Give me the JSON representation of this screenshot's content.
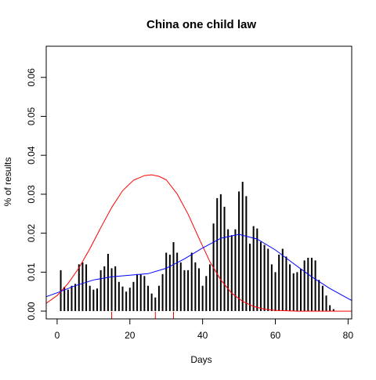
{
  "chart_data": {
    "type": "bar",
    "title": "China one child law",
    "xlabel": "Days",
    "ylabel": "% of results",
    "xlim": [
      -3,
      81
    ],
    "ylim": [
      -0.002,
      0.068
    ],
    "x_ticks": [
      0,
      20,
      40,
      60,
      80
    ],
    "y_ticks": [
      0.0,
      0.01,
      0.02,
      0.03,
      0.04,
      0.05,
      0.06
    ],
    "y_tick_labels": [
      "0.00",
      "0.01",
      "0.02",
      "0.03",
      "0.04",
      "0.05",
      "0.06"
    ],
    "grid": false,
    "bars": {
      "x": [
        1,
        2,
        3,
        4,
        5,
        6,
        7,
        8,
        9,
        10,
        11,
        12,
        13,
        14,
        15,
        16,
        17,
        18,
        19,
        20,
        21,
        22,
        23,
        24,
        25,
        26,
        27,
        28,
        29,
        30,
        31,
        32,
        33,
        34,
        35,
        36,
        37,
        38,
        39,
        40,
        41,
        42,
        43,
        44,
        45,
        46,
        47,
        48,
        49,
        50,
        51,
        52,
        53,
        54,
        55,
        56,
        57,
        58,
        59,
        60,
        61,
        62,
        63,
        64,
        65,
        66,
        67,
        68,
        69,
        70,
        71,
        72,
        73,
        74,
        75,
        76
      ],
      "values": [
        0.0105,
        0.0062,
        0.0055,
        0.0065,
        0.007,
        0.012,
        0.0125,
        0.012,
        0.0065,
        0.0055,
        0.0058,
        0.0105,
        0.0115,
        0.0147,
        0.011,
        0.0115,
        0.0075,
        0.0063,
        0.005,
        0.006,
        0.0075,
        0.0095,
        0.0095,
        0.009,
        0.0065,
        0.0045,
        0.0035,
        0.0065,
        0.0095,
        0.015,
        0.0145,
        0.0177,
        0.015,
        0.0125,
        0.0105,
        0.0105,
        0.015,
        0.0125,
        0.011,
        0.0065,
        0.009,
        0.012,
        0.0225,
        0.029,
        0.03,
        0.0268,
        0.021,
        0.0195,
        0.021,
        0.0307,
        0.0332,
        0.0295,
        0.0173,
        0.0218,
        0.0212,
        0.0178,
        0.017,
        0.016,
        0.012,
        0.01,
        0.0145,
        0.016,
        0.014,
        0.012,
        0.0097,
        0.01,
        0.0108,
        0.013,
        0.0137,
        0.0137,
        0.013,
        0.008,
        0.0065,
        0.004,
        0.0015,
        0.0005
      ]
    },
    "series": [
      {
        "color": "#ff0000",
        "x": [
          -3,
          0,
          3,
          6,
          9,
          12,
          15,
          18,
          21,
          24,
          26,
          27,
          28,
          30,
          33,
          36,
          39,
          42,
          45,
          48,
          51,
          54,
          57,
          60,
          66,
          72,
          78,
          81
        ],
        "values": [
          0.002,
          0.004,
          0.0071,
          0.0111,
          0.016,
          0.0214,
          0.0266,
          0.0309,
          0.0336,
          0.0348,
          0.035,
          0.0348,
          0.0346,
          0.0337,
          0.0301,
          0.0249,
          0.0187,
          0.0127,
          0.008,
          0.0046,
          0.0025,
          0.0012,
          0.0005,
          0.0002,
          0.0,
          0.0,
          0.0,
          0.0
        ]
      },
      {
        "color": "#0000ff",
        "x": [
          -3,
          0,
          5,
          10,
          15,
          20,
          25,
          30,
          35,
          40,
          45,
          50,
          55,
          60,
          65,
          70,
          75,
          81
        ],
        "values": [
          0.0037,
          0.0047,
          0.0065,
          0.008,
          0.0088,
          0.0092,
          0.0096,
          0.011,
          0.0134,
          0.0162,
          0.0187,
          0.0197,
          0.0185,
          0.0157,
          0.0122,
          0.0088,
          0.0058,
          0.0027
        ]
      }
    ],
    "rug": {
      "color": "#ff0000",
      "x": [
        15,
        27,
        32
      ]
    }
  }
}
